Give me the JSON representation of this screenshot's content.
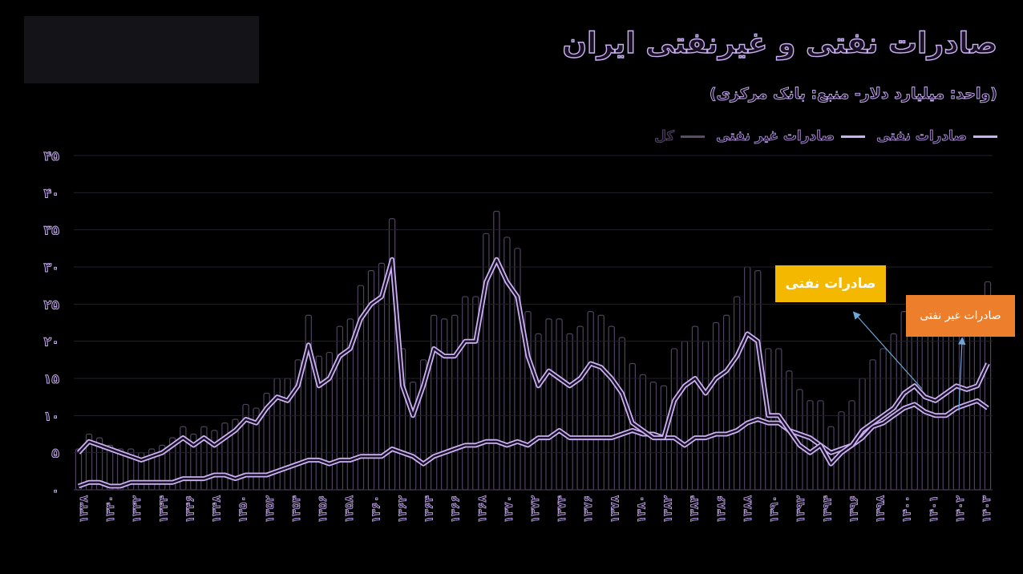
{
  "title": "صادرات نفتی و غیرنفتی ایران",
  "subtitle": "(واحد: میلیارد دلار- منبع: بانک مرکزی)",
  "legend": {
    "oil": "صادرات نفتی",
    "nonoil": "صادرات غیر نفتی",
    "total": "کل"
  },
  "callouts": {
    "oil": "صادرات نفتی",
    "nonoil": "صادرات غیر نفتی"
  },
  "colors": {
    "line": "#c9b0f3",
    "bar": "#6a5a80",
    "oil_callout": "#f5b800",
    "nonoil_callout": "#ec7e2c",
    "arrow": "#6ea7d8"
  },
  "chart_data": {
    "type": "line",
    "ylim": [
      0,
      45
    ],
    "yticks": [
      "۰",
      "۵",
      "۱۰",
      "۱۵",
      "۲۰",
      "۲۵",
      "۳۰",
      "۳۵",
      "۴۰",
      "۴۵"
    ],
    "xticks": [
      "۱۳۳۸",
      "۱۳۴۰",
      "۱۳۴۲",
      "۱۳۴۴",
      "۱۳۴۶",
      "۱۳۴۸",
      "۱۳۵۰",
      "۱۳۵۲",
      "۱۳۵۴",
      "۱۳۵۶",
      "۱۳۵۸",
      "۱۳۶۰",
      "۱۳۶۲",
      "۱۳۶۴",
      "۱۳۶۶",
      "۱۳۶۸",
      "۱۳۷۰",
      "۱۳۷۲",
      "۱۳۷۴",
      "۱۳۷۶",
      "۱۳۷۸",
      "۱۳۸۰",
      "۱۳۸۲",
      "۱۳۸۴",
      "۱۳۸۶",
      "۱۳۸۸",
      "۱۳۹۰",
      "۱۳۹۲",
      "۱۳۹۴",
      "۱۳۹۶",
      "۱۳۹۸",
      "۱۴۰۰",
      "۱۴۰۱",
      "۱۴۰۲",
      "۱۴۰۳"
    ],
    "series": [
      {
        "name": "صادرات نفتی",
        "values": [
          5,
          6.5,
          6,
          5.5,
          5,
          4.5,
          4,
          4.5,
          5,
          6,
          7,
          6,
          7,
          6,
          7,
          8,
          9.5,
          9,
          11,
          12.5,
          12,
          14,
          19.5,
          14,
          15,
          18,
          19,
          23,
          25,
          26,
          31,
          14,
          10,
          14,
          19,
          18,
          18,
          20,
          20,
          28,
          31,
          28,
          26,
          18,
          14,
          16,
          15,
          14,
          15,
          17,
          16.5,
          15,
          13,
          9,
          8,
          7,
          7,
          12,
          14,
          15,
          13,
          15,
          16,
          18,
          21,
          20,
          10,
          10,
          8,
          6,
          5,
          6,
          3.5,
          5,
          6,
          8,
          9,
          10,
          11,
          13,
          14,
          12.5,
          12,
          13,
          14,
          13.5,
          14,
          17
        ]
      },
      {
        "name": "صادرات غیر نفتی",
        "values": [
          0.5,
          1,
          1,
          0.5,
          0.5,
          1,
          1,
          1,
          1,
          1,
          1.5,
          1.5,
          1.5,
          2,
          2,
          1.5,
          2,
          2,
          2,
          2.5,
          3,
          3.5,
          4,
          4,
          3.5,
          4,
          4,
          4.5,
          4.5,
          4.5,
          5.5,
          5,
          4.5,
          3.5,
          4.5,
          5,
          5.5,
          6,
          6,
          6.5,
          6.5,
          6,
          6.5,
          6,
          7,
          7,
          8,
          7,
          7,
          7,
          7,
          7,
          7.5,
          8,
          7.5,
          7.5,
          7,
          7,
          6,
          7,
          7,
          7.5,
          7.5,
          8,
          9,
          9.5,
          9,
          9,
          8,
          7.5,
          7,
          6,
          5,
          5.5,
          6,
          7,
          8.5,
          9,
          10,
          11,
          11.5,
          10.5,
          10,
          10,
          11,
          11.5,
          12,
          11
        ]
      }
    ]
  }
}
